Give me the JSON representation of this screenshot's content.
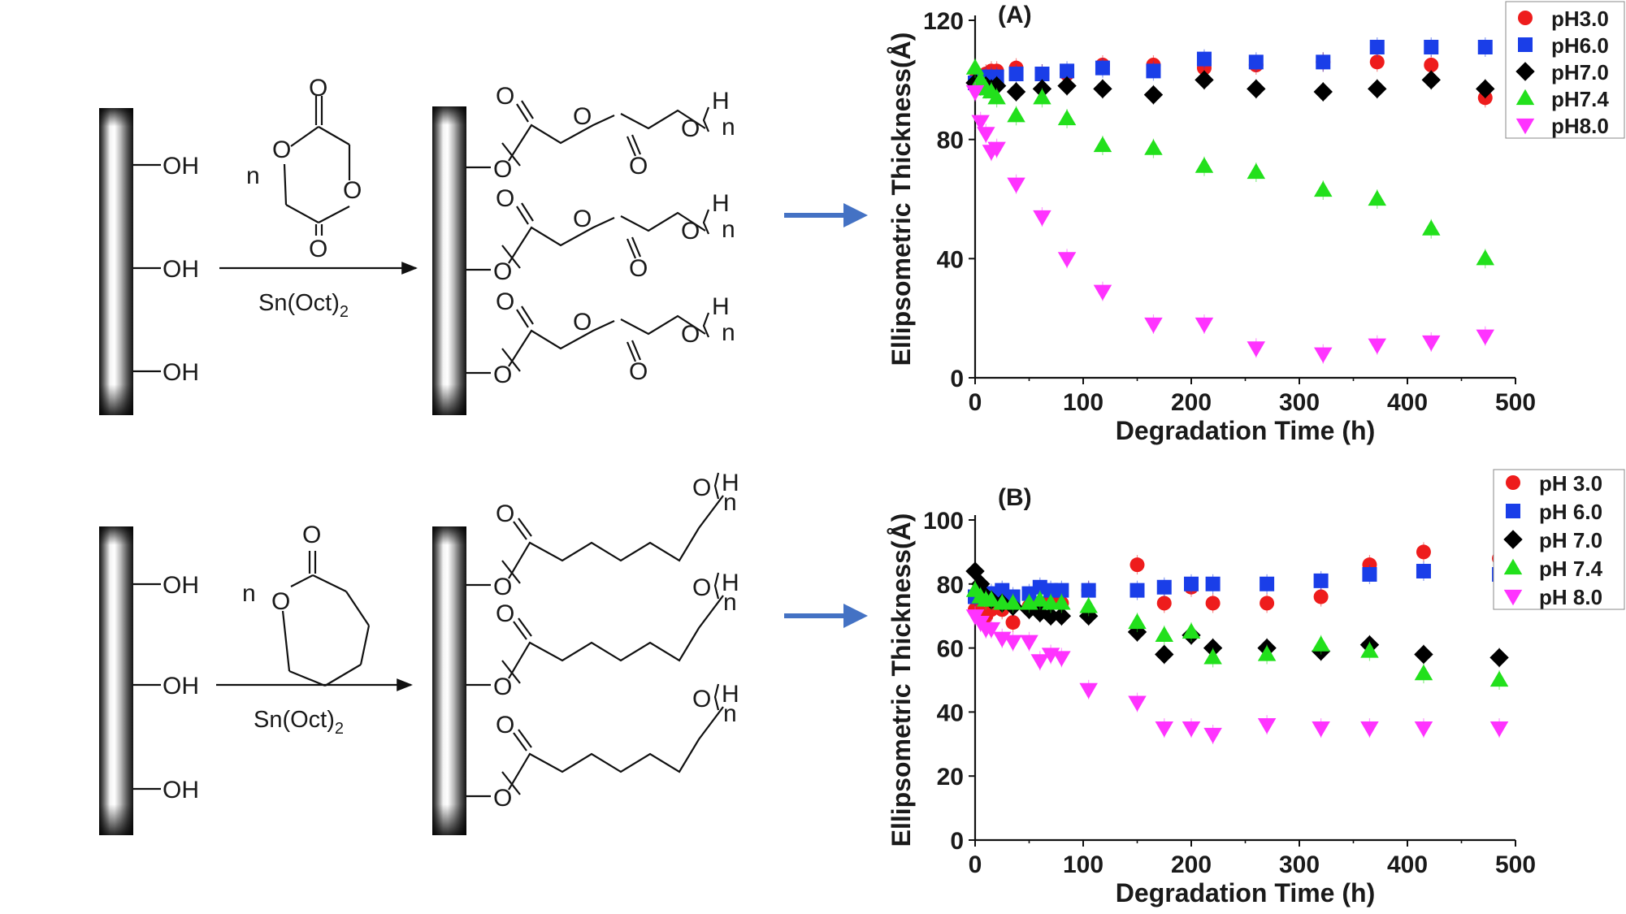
{
  "scheme": {
    "hydroxyl_label": "OH",
    "catalyst": "Sn(Oct)",
    "catalyst_subscript": "2",
    "monomer_count": "n",
    "carbonyl_o": "O",
    "ring_o": "O",
    "chain_o": "O",
    "end_h": "H",
    "repeat_n": "n",
    "arrow_color": "#4472c4"
  },
  "chart_data": [
    {
      "type": "scatter",
      "panel_label": "(A)",
      "xlabel": "Degradation Time (h)",
      "ylabel": "Ellipsometric Thickness(Å)",
      "xlim": [
        0,
        500
      ],
      "ylim": [
        0,
        120
      ],
      "xticks": [
        0,
        100,
        200,
        300,
        400,
        500
      ],
      "yticks": [
        0,
        40,
        80,
        120
      ],
      "grid": false,
      "legend_position": "top-right",
      "series": [
        {
          "name": "pH3.0",
          "marker": "circle",
          "color": "#ee1c1c",
          "x": [
            0,
            5,
            10,
            15,
            20,
            38,
            62,
            85,
            118,
            165,
            212,
            260,
            322,
            372,
            422,
            472
          ],
          "y": [
            100,
            99,
            102,
            103,
            103,
            104,
            102,
            102,
            105,
            105,
            104,
            105,
            106,
            106,
            105,
            94
          ]
        },
        {
          "name": "pH6.0",
          "marker": "square",
          "color": "#1a3ee8",
          "x": [
            0,
            5,
            10,
            15,
            20,
            38,
            62,
            85,
            118,
            165,
            212,
            260,
            322,
            372,
            422,
            472
          ],
          "y": [
            99,
            100,
            101,
            101,
            101,
            102,
            102,
            103,
            104,
            103,
            107,
            106,
            106,
            111,
            111,
            111
          ]
        },
        {
          "name": "pH7.0",
          "marker": "diamond",
          "color": "#000000",
          "x": [
            0,
            5,
            10,
            15,
            20,
            38,
            62,
            85,
            118,
            165,
            212,
            260,
            322,
            372,
            422,
            472
          ],
          "y": [
            99,
            98,
            98,
            97,
            98,
            96,
            97,
            98,
            97,
            95,
            100,
            97,
            96,
            97,
            100,
            97
          ]
        },
        {
          "name": "pH7.4",
          "marker": "triangle-up",
          "color": "#22e01c",
          "x": [
            0,
            5,
            10,
            15,
            20,
            38,
            62,
            85,
            118,
            165,
            212,
            260,
            322,
            372,
            422,
            472
          ],
          "y": [
            104,
            100,
            97,
            96,
            94,
            88,
            94,
            87,
            78,
            77,
            71,
            69,
            63,
            60,
            50,
            40
          ]
        },
        {
          "name": "pH8.0",
          "marker": "triangle-down",
          "color": "#ff33ff",
          "x": [
            0,
            5,
            10,
            15,
            20,
            38,
            62,
            85,
            118,
            165,
            212,
            260,
            322,
            372,
            422,
            472
          ],
          "y": [
            96,
            86,
            82,
            76,
            77,
            65,
            54,
            40,
            29,
            18,
            18,
            10,
            8,
            11,
            12,
            14
          ]
        }
      ]
    },
    {
      "type": "scatter",
      "panel_label": "(B)",
      "xlabel": "Degradation Time (h)",
      "ylabel": "Ellipsometric Thickness(Å)",
      "xlim": [
        0,
        500
      ],
      "ylim": [
        0,
        100
      ],
      "xticks": [
        0,
        100,
        200,
        300,
        400,
        500
      ],
      "yticks": [
        0,
        20,
        40,
        60,
        80,
        100
      ],
      "grid": false,
      "legend_position": "top-right",
      "series": [
        {
          "name": "pH 3.0",
          "marker": "circle",
          "color": "#ee1c1c",
          "x": [
            0,
            5,
            10,
            15,
            25,
            35,
            50,
            60,
            70,
            80,
            105,
            150,
            175,
            200,
            220,
            270,
            320,
            365,
            415,
            485
          ],
          "y": [
            72,
            71,
            70,
            72,
            72,
            68,
            73,
            74,
            75,
            74,
            78,
            86,
            74,
            79,
            74,
            74,
            76,
            86,
            90,
            88
          ]
        },
        {
          "name": "pH 6.0",
          "marker": "square",
          "color": "#1a3ee8",
          "x": [
            0,
            5,
            10,
            15,
            25,
            35,
            50,
            60,
            70,
            80,
            105,
            150,
            175,
            200,
            220,
            270,
            320,
            365,
            415,
            485
          ],
          "y": [
            76,
            76,
            77,
            77,
            78,
            76,
            77,
            79,
            78,
            78,
            78,
            78,
            79,
            80,
            80,
            80,
            81,
            83,
            84,
            83
          ]
        },
        {
          "name": "pH 7.0",
          "marker": "diamond",
          "color": "#000000",
          "x": [
            0,
            5,
            10,
            15,
            25,
            35,
            50,
            60,
            70,
            80,
            105,
            150,
            175,
            200,
            220,
            270,
            320,
            365,
            415,
            485
          ],
          "y": [
            84,
            80,
            76,
            75,
            74,
            73,
            72,
            71,
            70,
            70,
            70,
            65,
            58,
            64,
            60,
            60,
            59,
            61,
            58,
            57
          ]
        },
        {
          "name": "pH 7.4",
          "marker": "triangle-up",
          "color": "#22e01c",
          "x": [
            0,
            5,
            10,
            15,
            25,
            35,
            50,
            60,
            70,
            80,
            105,
            150,
            175,
            200,
            220,
            270,
            320,
            365,
            415,
            485
          ],
          "y": [
            78,
            76,
            75,
            75,
            74,
            74,
            74,
            75,
            74,
            74,
            73,
            68,
            64,
            65,
            57,
            58,
            61,
            59,
            52,
            50
          ]
        },
        {
          "name": "pH 8.0",
          "marker": "triangle-down",
          "color": "#ff33ff",
          "x": [
            0,
            5,
            10,
            15,
            25,
            35,
            50,
            60,
            70,
            80,
            105,
            150,
            175,
            200,
            220,
            270,
            320,
            365,
            415,
            485
          ],
          "y": [
            70,
            68,
            66,
            66,
            63,
            62,
            62,
            56,
            58,
            57,
            47,
            43,
            35,
            35,
            33,
            36,
            35,
            35,
            35,
            35
          ]
        }
      ]
    }
  ]
}
